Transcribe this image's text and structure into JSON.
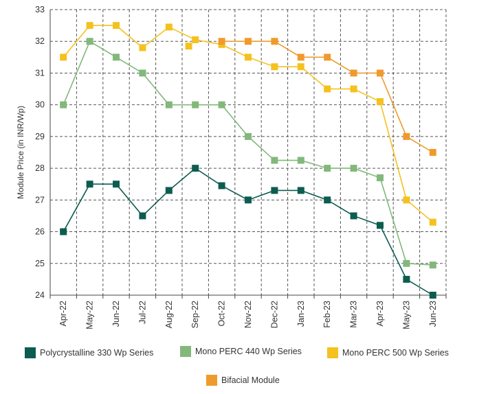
{
  "chart_data": {
    "type": "line",
    "title": "",
    "xlabel": "",
    "ylabel": "Module Price (in INR/Wp)",
    "ylim": [
      24,
      33
    ],
    "yticks": [
      "24",
      "25",
      "26",
      "27",
      "28",
      "29",
      "30",
      "31",
      "32",
      "33"
    ],
    "grid": true,
    "categories": [
      "Apr-22",
      "May-22",
      "Jun-22",
      "Jul-22",
      "Aug-22",
      "Sep-22",
      "Oct-22",
      "Nov-22",
      "Dec-22",
      "Jan-23",
      "Feb-23",
      "Mar-23",
      "Apr-23",
      "May-23",
      "Jun-23"
    ],
    "series": [
      {
        "name": "Polycrystalline 330 Wp Series",
        "color": "#0d5c50",
        "values": [
          [
            0,
            26.0
          ],
          [
            1,
            27.5
          ],
          [
            2,
            27.5
          ],
          [
            3,
            26.5
          ],
          [
            4,
            27.3
          ],
          [
            5,
            28.0
          ],
          [
            6,
            27.45
          ],
          [
            7,
            27.0
          ],
          [
            8,
            27.3
          ],
          [
            9,
            27.3
          ],
          [
            10,
            27.0
          ],
          [
            11,
            26.5
          ],
          [
            12,
            26.2
          ],
          [
            13,
            24.5
          ],
          [
            14,
            24.0
          ]
        ]
      },
      {
        "name": "Mono PERC 440 Wp Series",
        "color": "#82b87a",
        "values": [
          [
            0,
            30.0
          ],
          [
            1,
            32.0
          ],
          [
            2,
            31.5
          ],
          [
            3,
            31.0
          ],
          [
            4,
            30.0
          ],
          [
            5,
            30.0
          ],
          [
            6,
            30.0
          ],
          [
            7,
            29.0
          ],
          [
            8,
            28.25
          ],
          [
            9,
            28.25
          ],
          [
            10,
            28.0
          ],
          [
            11,
            28.0
          ],
          [
            12,
            27.7
          ],
          [
            13,
            25.0
          ],
          [
            14,
            24.95
          ]
        ]
      },
      {
        "name": "Mono PERC 500 Wp Series",
        "color": "#f4c11e",
        "values": [
          [
            0,
            31.5
          ],
          [
            1,
            32.5
          ],
          [
            2,
            32.5
          ],
          [
            3,
            31.8
          ],
          [
            4,
            32.45
          ],
          [
            5,
            32.05
          ],
          [
            6,
            31.9
          ],
          [
            7,
            31.5
          ],
          [
            8,
            31.2
          ],
          [
            9,
            31.2
          ],
          [
            10,
            30.5
          ],
          [
            11,
            30.5
          ],
          [
            12,
            30.1
          ],
          [
            13,
            27.0
          ],
          [
            14,
            26.3
          ]
        ]
      },
      {
        "name": "Bifacial Module",
        "color": "#f09a2c",
        "values": [
          [
            6,
            32.0
          ],
          [
            7,
            32.0
          ],
          [
            8,
            32.0
          ],
          [
            9,
            31.5
          ],
          [
            10,
            31.5
          ],
          [
            11,
            31.0
          ],
          [
            12,
            31.0
          ],
          [
            13,
            29.0
          ],
          [
            14,
            28.5
          ]
        ]
      }
    ]
  },
  "extra_points": [
    {
      "series": "Mono PERC 500 Wp Series",
      "x": 4.75,
      "y": 31.85
    }
  ]
}
